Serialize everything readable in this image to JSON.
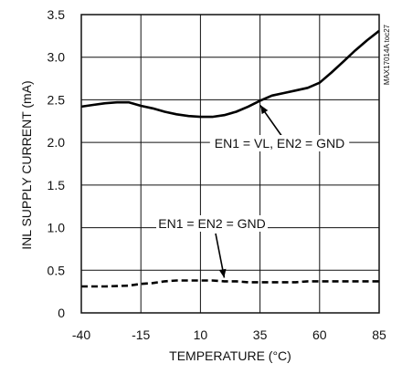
{
  "chart_data": {
    "type": "line",
    "xlabel": "TEMPERATURE (°C)",
    "ylabel": "INL SUPPLY CURRENT (mA)",
    "xlim": [
      -40,
      85
    ],
    "ylim": [
      0,
      3.5
    ],
    "xticks": [
      -40,
      -15,
      10,
      35,
      60,
      85
    ],
    "yticks": [
      0,
      0.5,
      1.0,
      1.5,
      2.0,
      2.5,
      3.0,
      3.5
    ],
    "xtick_labels": [
      "-40",
      "-15",
      "10",
      "35",
      "60",
      "85"
    ],
    "ytick_labels": [
      "0",
      "0.5",
      "1.0",
      "1.5",
      "2.0",
      "2.5",
      "3.0",
      "3.5"
    ],
    "grid": true,
    "series": [
      {
        "name": "EN1 = VL, EN2 = GND",
        "style": "solid",
        "x": [
          -40,
          -35,
          -30,
          -25,
          -20,
          -15,
          -10,
          -5,
          0,
          5,
          10,
          15,
          20,
          25,
          30,
          35,
          40,
          45,
          50,
          55,
          60,
          65,
          70,
          75,
          80,
          85
        ],
        "y": [
          2.42,
          2.44,
          2.46,
          2.47,
          2.47,
          2.43,
          2.4,
          2.36,
          2.33,
          2.31,
          2.3,
          2.3,
          2.32,
          2.36,
          2.42,
          2.49,
          2.55,
          2.58,
          2.61,
          2.64,
          2.7,
          2.82,
          2.95,
          3.08,
          3.2,
          3.31
        ]
      },
      {
        "name": "EN1 = EN2 = GND",
        "style": "dashed",
        "x": [
          -40,
          -30,
          -20,
          -15,
          -10,
          -5,
          0,
          5,
          10,
          15,
          20,
          25,
          30,
          35,
          40,
          45,
          50,
          55,
          60,
          65,
          70,
          75,
          80,
          85
        ],
        "y": [
          0.31,
          0.31,
          0.32,
          0.34,
          0.35,
          0.37,
          0.38,
          0.38,
          0.38,
          0.38,
          0.37,
          0.37,
          0.36,
          0.36,
          0.36,
          0.36,
          0.36,
          0.37,
          0.37,
          0.37,
          0.37,
          0.37,
          0.37,
          0.37
        ]
      }
    ],
    "annotations": [
      {
        "text": "EN1 = VL, EN2 = GND",
        "x": 35,
        "y": 2.49
      },
      {
        "text": "EN1 = EN2 = GND",
        "x": 20,
        "y": 0.37
      }
    ],
    "side_label": "MAX17014A toc27"
  }
}
